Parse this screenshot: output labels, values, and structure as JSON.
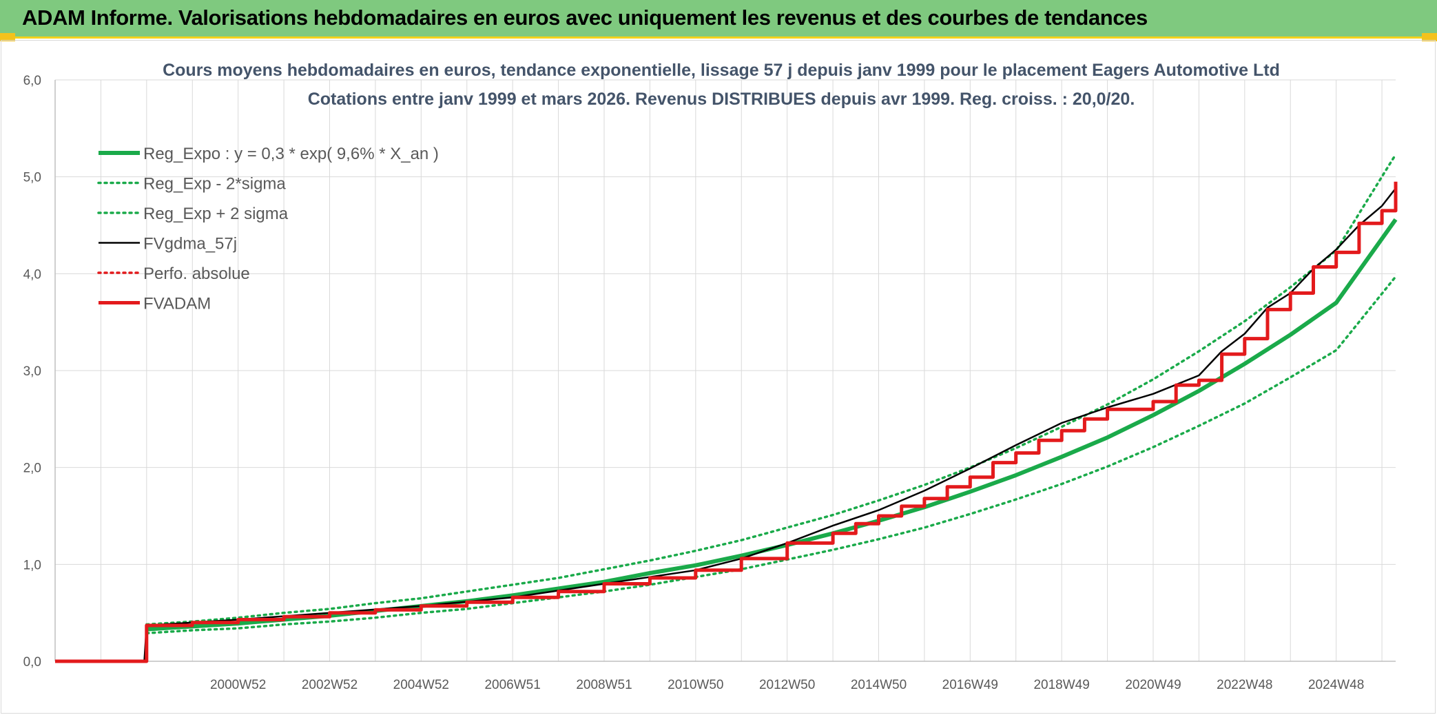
{
  "banner": {
    "title": "ADAM Informe. Valorisations hebdomadaires en euros avec uniquement les revenus et des courbes de tendances",
    "background": "#7fc97f",
    "accent": "#f4c21c"
  },
  "chart_data": {
    "type": "line",
    "title_lines": [
      "Cours moyens hebdomadaires en euros, tendance exponentielle, lissage 57 j depuis janv 1999 pour le placement Eagers Automotive Ltd",
      "Cotations entre janv 1999 et mars 2026. Revenus DISTRIBUES depuis avr 1999. Reg. croiss. : 20,0/20."
    ],
    "xlabel": "",
    "ylabel": "",
    "x_tick_labels": [
      "2000W52",
      "2002W52",
      "2004W52",
      "2006W51",
      "2008W51",
      "2010W50",
      "2012W50",
      "2014W50",
      "2016W49",
      "2018W49",
      "2020W49",
      "2022W48",
      "2024W48"
    ],
    "x_range": [
      1997.0,
      2026.3
    ],
    "x_tick_positions": [
      2001.0,
      2003.0,
      2005.0,
      2007.0,
      2009.0,
      2011.0,
      2013.0,
      2015.0,
      2017.0,
      2019.0,
      2021.0,
      2023.0,
      2025.0
    ],
    "y_tick_labels": [
      "0,0",
      "1,0",
      "2,0",
      "3,0",
      "4,0",
      "5,0",
      "6,0"
    ],
    "ylim": [
      0,
      6
    ],
    "grid": true,
    "legend_position": "top-left",
    "series": [
      {
        "name": "Reg_Expo : y = 0,3 * exp( 9,6% *  X_an )",
        "color": "#1aaa4a",
        "style": "solid-thick",
        "x": [
          1999.0,
          2000.0,
          2001.0,
          2002.0,
          2003.0,
          2004.0,
          2005.0,
          2006.0,
          2007.0,
          2008.0,
          2009.0,
          2010.0,
          2011.0,
          2012.0,
          2013.0,
          2014.0,
          2015.0,
          2016.0,
          2017.0,
          2018.0,
          2019.0,
          2020.0,
          2021.0,
          2022.0,
          2023.0,
          2024.0,
          2025.0,
          2026.3
        ],
        "values": [
          0.33,
          0.36,
          0.39,
          0.43,
          0.47,
          0.52,
          0.57,
          0.62,
          0.68,
          0.75,
          0.82,
          0.91,
          0.99,
          1.09,
          1.2,
          1.32,
          1.45,
          1.59,
          1.75,
          1.92,
          2.11,
          2.31,
          2.54,
          2.79,
          3.07,
          3.37,
          3.7,
          4.56
        ]
      },
      {
        "name": "Reg_Exp - 2*sigma",
        "color": "#1aaa4a",
        "style": "dotted",
        "x": [
          1999.0,
          2000.0,
          2001.0,
          2002.0,
          2003.0,
          2004.0,
          2005.0,
          2006.0,
          2007.0,
          2008.0,
          2009.0,
          2010.0,
          2011.0,
          2012.0,
          2013.0,
          2014.0,
          2015.0,
          2016.0,
          2017.0,
          2018.0,
          2019.0,
          2020.0,
          2021.0,
          2022.0,
          2023.0,
          2024.0,
          2025.0,
          2026.3
        ],
        "values": [
          0.29,
          0.32,
          0.34,
          0.38,
          0.41,
          0.45,
          0.5,
          0.54,
          0.6,
          0.66,
          0.72,
          0.79,
          0.87,
          0.95,
          1.05,
          1.15,
          1.26,
          1.38,
          1.52,
          1.67,
          1.83,
          2.01,
          2.21,
          2.43,
          2.66,
          2.93,
          3.21,
          3.97
        ]
      },
      {
        "name": "Reg_Exp + 2 sigma",
        "color": "#1aaa4a",
        "style": "dotted",
        "x": [
          1999.0,
          2000.0,
          2001.0,
          2002.0,
          2003.0,
          2004.0,
          2005.0,
          2006.0,
          2007.0,
          2008.0,
          2009.0,
          2010.0,
          2011.0,
          2012.0,
          2013.0,
          2014.0,
          2015.0,
          2016.0,
          2017.0,
          2018.0,
          2019.0,
          2020.0,
          2021.0,
          2022.0,
          2023.0,
          2024.0,
          2025.0,
          2026.3
        ],
        "values": [
          0.38,
          0.41,
          0.45,
          0.5,
          0.54,
          0.6,
          0.65,
          0.72,
          0.79,
          0.86,
          0.95,
          1.04,
          1.14,
          1.25,
          1.38,
          1.51,
          1.66,
          1.82,
          2.0,
          2.2,
          2.42,
          2.65,
          2.91,
          3.2,
          3.51,
          3.86,
          4.24,
          5.23
        ]
      },
      {
        "name": "FVgdma_57j",
        "color": "#000000",
        "style": "solid",
        "x": [
          1997.0,
          1998.95,
          1999.0,
          2001.0,
          2003.0,
          2005.0,
          2007.0,
          2009.0,
          2011.0,
          2012.0,
          2013.0,
          2014.0,
          2015.0,
          2016.0,
          2017.0,
          2018.0,
          2019.0,
          2020.0,
          2021.0,
          2022.0,
          2022.5,
          2023.0,
          2023.5,
          2024.0,
          2024.5,
          2025.0,
          2025.5,
          2026.0,
          2026.3
        ],
        "values": [
          0.0,
          0.0,
          0.37,
          0.43,
          0.5,
          0.57,
          0.66,
          0.8,
          0.94,
          1.06,
          1.22,
          1.4,
          1.56,
          1.76,
          1.99,
          2.23,
          2.46,
          2.62,
          2.76,
          2.95,
          3.2,
          3.38,
          3.65,
          3.8,
          4.05,
          4.25,
          4.5,
          4.7,
          4.88
        ]
      },
      {
        "name": "Perfo. absolue",
        "color": "#e31a1c",
        "style": "dotted",
        "x": [],
        "values": []
      },
      {
        "name": "FVADAM",
        "color": "#e31a1c",
        "style": "step-thick",
        "x": [
          1997.0,
          1998.95,
          1999.0,
          2000.0,
          2001.0,
          2002.0,
          2003.0,
          2004.0,
          2005.0,
          2006.0,
          2007.0,
          2008.0,
          2009.0,
          2010.0,
          2011.0,
          2012.0,
          2013.0,
          2014.0,
          2014.5,
          2015.0,
          2015.5,
          2016.0,
          2016.5,
          2017.0,
          2017.5,
          2018.0,
          2018.5,
          2019.0,
          2019.5,
          2020.0,
          2021.0,
          2021.5,
          2022.0,
          2022.5,
          2023.0,
          2023.5,
          2024.0,
          2024.5,
          2025.0,
          2025.5,
          2026.0,
          2026.3
        ],
        "values": [
          0.0,
          0.0,
          0.37,
          0.4,
          0.43,
          0.46,
          0.5,
          0.53,
          0.57,
          0.61,
          0.66,
          0.72,
          0.8,
          0.86,
          0.94,
          1.06,
          1.22,
          1.32,
          1.42,
          1.5,
          1.6,
          1.68,
          1.8,
          1.9,
          2.05,
          2.15,
          2.28,
          2.38,
          2.5,
          2.6,
          2.68,
          2.85,
          2.9,
          3.17,
          3.33,
          3.63,
          3.8,
          4.07,
          4.22,
          4.52,
          4.65,
          4.95
        ]
      }
    ]
  }
}
